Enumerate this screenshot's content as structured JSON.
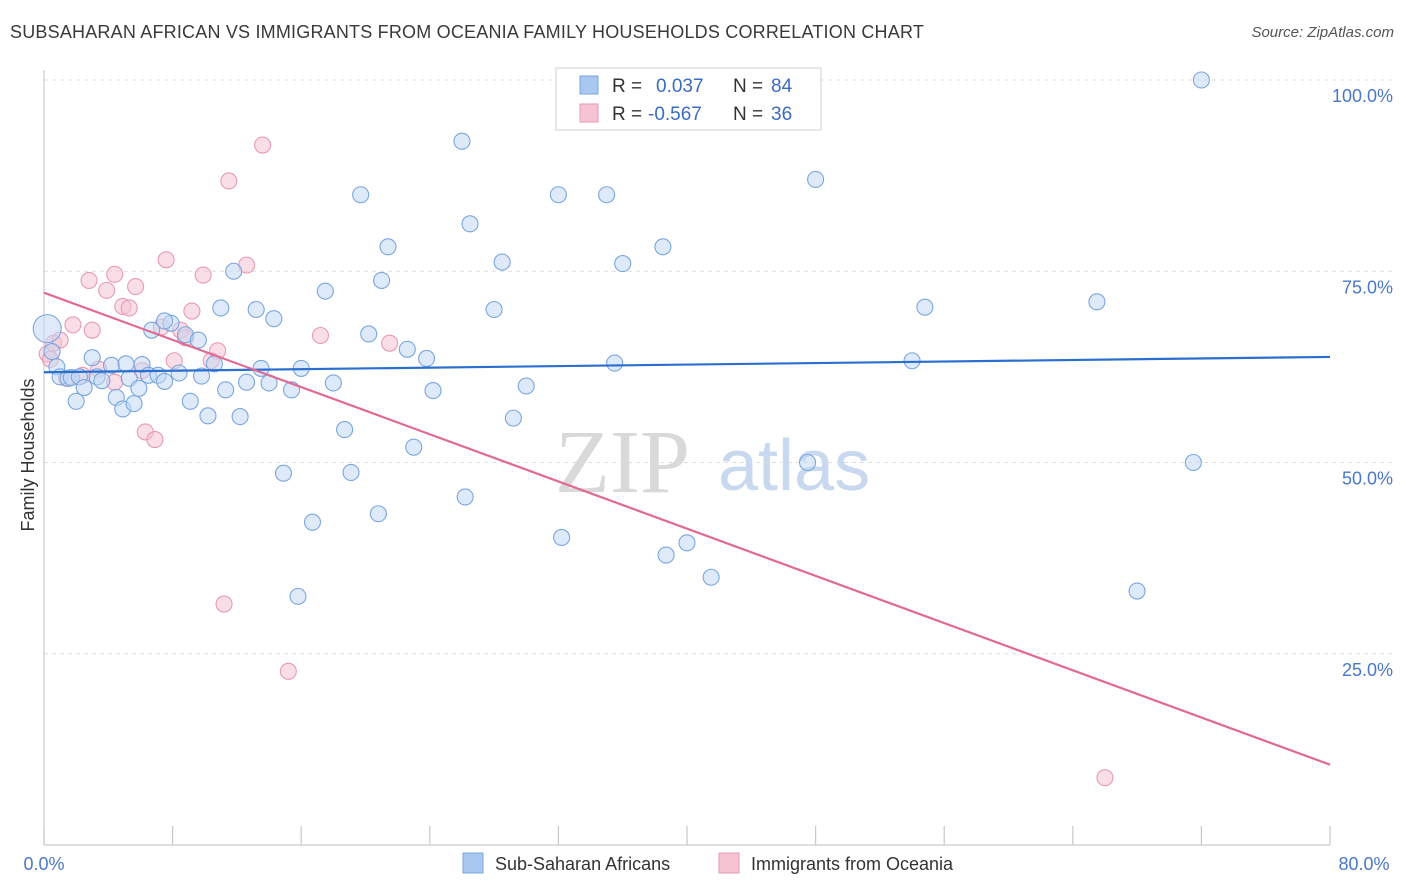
{
  "title": "SUBSAHARAN AFRICAN VS IMMIGRANTS FROM OCEANIA FAMILY HOUSEHOLDS CORRELATION CHART",
  "source": "Source: ZipAtlas.com",
  "watermark": {
    "zip": "ZIP",
    "atlas": "atlas"
  },
  "colors": {
    "blue": "#a9c8f0",
    "blue_line": "#2a6fd0",
    "pink": "#f6b6c9",
    "pink_line": "#e06995",
    "axis_text": "#4a78c8"
  },
  "stats": {
    "r_label": "R =",
    "n_label": "N =",
    "blue": {
      "r": "0.037",
      "n": "84"
    },
    "pink": {
      "r": "-0.567",
      "n": "36"
    }
  },
  "legend": {
    "blue": "Sub-Saharan Africans",
    "pink": "Immigrants from Oceania"
  },
  "chart_data": {
    "type": "scatter",
    "title": "SUBSAHARAN AFRICAN VS IMMIGRANTS FROM OCEANIA FAMILY HOUSEHOLDS CORRELATION CHART",
    "xlabel": "",
    "ylabel": "Family Households",
    "xlim": [
      0,
      80
    ],
    "ylim": [
      0,
      100
    ],
    "x_tick_labels": [
      "0.0%",
      "80.0%"
    ],
    "y_tick_labels": [
      "25.0%",
      "50.0%",
      "75.0%",
      "100.0%"
    ],
    "y_ticks": [
      25,
      50,
      75,
      100
    ],
    "grid": true,
    "legend_position": "bottom",
    "series": [
      {
        "name": "Sub-Saharan Africans",
        "color": "#a9c8f0",
        "trend": {
          "x": [
            0,
            80
          ],
          "y": [
            61.8,
            63.8
          ]
        },
        "points": [
          [
            0.2,
            67.5
          ],
          [
            0.5,
            64.5
          ],
          [
            0.8,
            62.5
          ],
          [
            1.0,
            61.2
          ],
          [
            1.5,
            61.0
          ],
          [
            1.7,
            61.1
          ],
          [
            2.2,
            61.2
          ],
          [
            2.0,
            58.0
          ],
          [
            2.5,
            59.8
          ],
          [
            3.0,
            63.7
          ],
          [
            3.3,
            61.2
          ],
          [
            3.6,
            60.7
          ],
          [
            4.2,
            62.7
          ],
          [
            4.5,
            58.5
          ],
          [
            4.9,
            57.0
          ],
          [
            5.1,
            62.9
          ],
          [
            5.3,
            61.0
          ],
          [
            5.6,
            57.7
          ],
          [
            5.9,
            59.7
          ],
          [
            6.1,
            62.8
          ],
          [
            6.5,
            61.4
          ],
          [
            6.7,
            67.3
          ],
          [
            7.1,
            61.4
          ],
          [
            7.5,
            60.6
          ],
          [
            7.9,
            68.2
          ],
          [
            7.5,
            68.5
          ],
          [
            8.4,
            61.7
          ],
          [
            8.8,
            66.7
          ],
          [
            9.1,
            58.0
          ],
          [
            9.6,
            66.0
          ],
          [
            9.8,
            61.3
          ],
          [
            10.2,
            56.1
          ],
          [
            10.6,
            62.9
          ],
          [
            11.0,
            70.2
          ],
          [
            11.3,
            59.5
          ],
          [
            11.8,
            75.0
          ],
          [
            12.2,
            56.0
          ],
          [
            12.6,
            60.5
          ],
          [
            13.2,
            70.0
          ],
          [
            13.5,
            62.3
          ],
          [
            14.0,
            60.4
          ],
          [
            14.3,
            68.8
          ],
          [
            14.9,
            48.6
          ],
          [
            15.4,
            59.5
          ],
          [
            15.8,
            32.5
          ],
          [
            16.0,
            62.3
          ],
          [
            16.7,
            42.2
          ],
          [
            17.5,
            72.4
          ],
          [
            18.0,
            60.4
          ],
          [
            18.7,
            54.3
          ],
          [
            19.1,
            48.7
          ],
          [
            19.7,
            85.0
          ],
          [
            20.2,
            66.8
          ],
          [
            20.8,
            43.3
          ],
          [
            21.0,
            73.8
          ],
          [
            21.4,
            78.2
          ],
          [
            22.6,
            64.8
          ],
          [
            23.0,
            52.0
          ],
          [
            23.8,
            63.6
          ],
          [
            24.2,
            59.4
          ],
          [
            26.0,
            92.0
          ],
          [
            26.2,
            45.5
          ],
          [
            26.5,
            81.2
          ],
          [
            28.0,
            70.0
          ],
          [
            28.5,
            76.2
          ],
          [
            29.2,
            55.8
          ],
          [
            30.0,
            60.0
          ],
          [
            32.0,
            85.0
          ],
          [
            32.2,
            40.2
          ],
          [
            35.0,
            85.0
          ],
          [
            35.5,
            63.0
          ],
          [
            36.0,
            76.0
          ],
          [
            38.5,
            78.2
          ],
          [
            38.7,
            37.9
          ],
          [
            40.0,
            39.5
          ],
          [
            41.5,
            35.0
          ],
          [
            47.5,
            50.0
          ],
          [
            48.0,
            87.0
          ],
          [
            54.0,
            63.3
          ],
          [
            54.8,
            70.3
          ],
          [
            65.5,
            71.0
          ],
          [
            68.0,
            33.2
          ],
          [
            71.5,
            50.0
          ],
          [
            72.0,
            100.0
          ]
        ]
      },
      {
        "name": "Immigrants from Oceania",
        "color": "#f6b6c9",
        "trend": {
          "x": [
            0,
            80
          ],
          "y": [
            72.2,
            10.5
          ]
        },
        "points": [
          [
            0.2,
            64.2
          ],
          [
            0.4,
            63.5
          ],
          [
            0.6,
            65.6
          ],
          [
            1.0,
            66.0
          ],
          [
            1.4,
            61.0
          ],
          [
            1.8,
            68.0
          ],
          [
            2.4,
            61.4
          ],
          [
            3.0,
            67.3
          ],
          [
            3.4,
            62.2
          ],
          [
            3.9,
            72.5
          ],
          [
            4.4,
            74.6
          ],
          [
            4.9,
            70.4
          ],
          [
            5.3,
            70.2
          ],
          [
            5.7,
            73.0
          ],
          [
            6.1,
            62.0
          ],
          [
            6.3,
            54.0
          ],
          [
            6.9,
            53.0
          ],
          [
            7.3,
            67.7
          ],
          [
            7.6,
            76.5
          ],
          [
            8.1,
            63.3
          ],
          [
            8.5,
            67.3
          ],
          [
            8.8,
            66.3
          ],
          [
            9.2,
            69.8
          ],
          [
            9.9,
            74.5
          ],
          [
            10.4,
            63.3
          ],
          [
            10.8,
            64.6
          ],
          [
            11.2,
            31.5
          ],
          [
            11.5,
            86.8
          ],
          [
            12.6,
            75.8
          ],
          [
            13.6,
            91.5
          ],
          [
            15.2,
            22.7
          ],
          [
            17.2,
            66.6
          ],
          [
            21.5,
            65.6
          ],
          [
            4.4,
            60.5
          ],
          [
            2.8,
            73.8
          ],
          [
            66.0,
            8.8
          ]
        ]
      }
    ]
  }
}
